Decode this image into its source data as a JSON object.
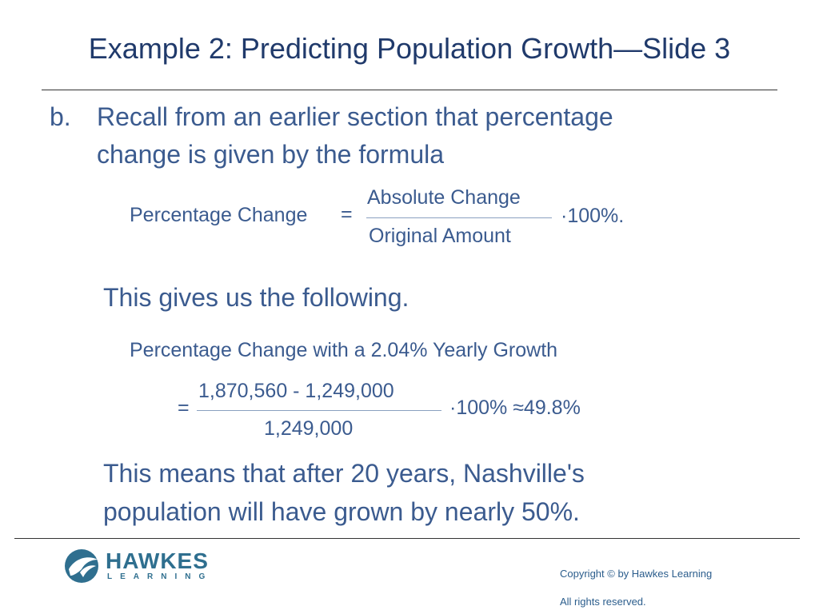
{
  "title": "Example 2: Predicting Population Growth—Slide 3",
  "item": {
    "marker": "b.",
    "lines": [
      "Recall from an earlier section that percentage",
      "change is given by the formula"
    ]
  },
  "formula1": {
    "lhs": "Percentage Change",
    "equals": "=",
    "numerator": "Absolute Change",
    "denominator": "Original Amount",
    "factor": "·100%."
  },
  "text2": "This gives us the following.",
  "formula2": {
    "heading": "Percentage Change with a 2.04% Yearly Growth",
    "equals": "=",
    "numerator": "1,870,560 - 1,249,000",
    "denominator": "1,249,000",
    "result": "·100% ≈49.8%"
  },
  "conclusion": {
    "lines": [
      "This means that after 20 years, Nashville's",
      "population will have grown by nearly 50%."
    ]
  },
  "footer": {
    "logo": {
      "name": "HAWKES",
      "sub": "LEARNING"
    },
    "copyright": "Copyright © by Hawkes Learning",
    "rights": "All rights reserved."
  }
}
